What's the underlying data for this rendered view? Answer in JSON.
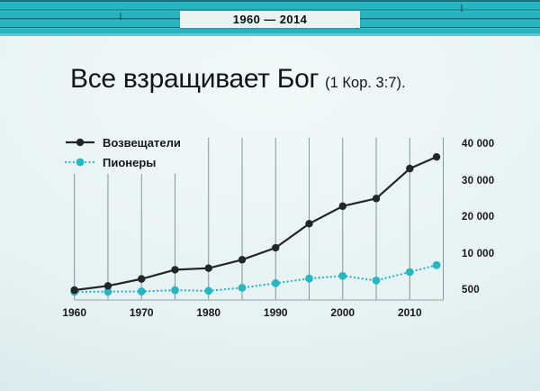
{
  "slide": {
    "header_range": "1960 — 2014",
    "title_main": "Все взращивает Бог",
    "title_reference": "(1 Кор. 3:7)."
  },
  "colors": {
    "band_teal": "#26b4bf",
    "band_bottom_strip": "#5fcdd5",
    "date_box_bg": "#e8f3f2",
    "background_light": "#f1f9f9",
    "background_dark": "#d2e5e8",
    "publishers": "#20262a",
    "pioneers": "#29b6c3",
    "gridline": "#6b7d82",
    "baseline": "#a3b4b8",
    "text": "#121517"
  },
  "chart_data": {
    "type": "line",
    "title": "Все взращивает Бог (1 Кор. 3:7).",
    "x": [
      1960,
      1965,
      1970,
      1975,
      1980,
      1985,
      1990,
      1995,
      2000,
      2005,
      2010,
      2014
    ],
    "series": [
      {
        "key": "publishers",
        "name": "Возвещатели",
        "style": "solid",
        "values": [
          500,
          1600,
          3400,
          5800,
          6200,
          8400,
          11600,
          18200,
          23000,
          25100,
          33300,
          36500
        ]
      },
      {
        "key": "pioneers",
        "name": "Пионеры",
        "style": "dotted",
        "values": [
          50,
          100,
          150,
          480,
          300,
          1100,
          2300,
          3500,
          4200,
          3000,
          5200,
          7000
        ]
      }
    ],
    "x_axis": {
      "tick_labels": [
        "1960",
        "1970",
        "1980",
        "1990",
        "2000",
        "2010"
      ],
      "tick_years": [
        1960,
        1970,
        1980,
        1990,
        2000,
        2010
      ],
      "gridline_years": [
        1960,
        1965,
        1970,
        1975,
        1980,
        1985,
        1990,
        1995,
        2000,
        2005,
        2010,
        2015
      ]
    },
    "y_axis": {
      "labels": [
        "40 000",
        "30 000",
        "20 000",
        "10 000",
        "500"
      ],
      "values": [
        40000,
        30000,
        20000,
        10000,
        500
      ],
      "side": "right"
    },
    "legend_position": "top-left",
    "grid": "vertical-only"
  }
}
